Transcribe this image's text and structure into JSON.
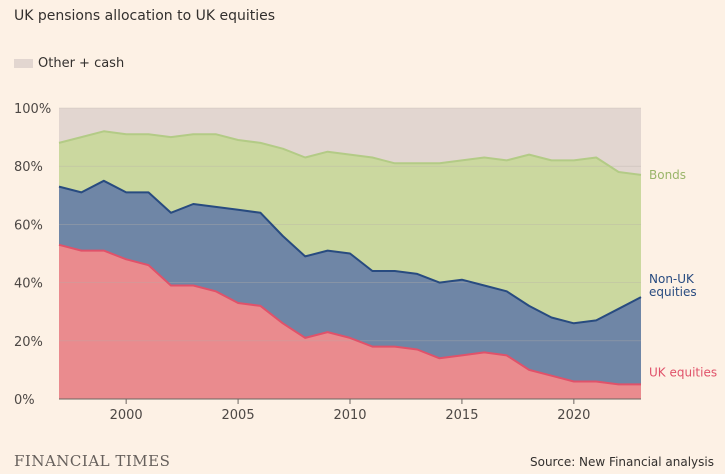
{
  "chart_data": {
    "type": "area",
    "stacked": true,
    "title": "UK pensions allocation to UK equities",
    "source": "Source: New Financial analysis",
    "publisher": "FINANCIAL TIMES",
    "x": [
      1997,
      1998,
      1999,
      2000,
      2001,
      2002,
      2003,
      2004,
      2005,
      2006,
      2007,
      2008,
      2009,
      2010,
      2011,
      2012,
      2013,
      2014,
      2015,
      2016,
      2017,
      2018,
      2019,
      2020,
      2021,
      2022,
      2023
    ],
    "xlim": [
      1997,
      2023
    ],
    "ylim": [
      0,
      100
    ],
    "yticks": [
      0,
      20,
      40,
      60,
      80,
      100
    ],
    "ytick_labels": [
      "0%",
      "20%",
      "40%",
      "60%",
      "80%",
      "100%"
    ],
    "xticks": [
      2000,
      2005,
      2010,
      2015,
      2020
    ],
    "xtick_labels": [
      "2000",
      "2005",
      "2010",
      "2015",
      "2020"
    ],
    "grid": true,
    "legend": {
      "position": "top-left",
      "label": "Other + cash",
      "color": "#e2d6d0"
    },
    "series": [
      {
        "name": "UK equities",
        "label": "UK equities",
        "fill": "#ea8b8e",
        "line": "#e0526a",
        "cumulative": [
          53,
          51,
          51,
          48,
          46,
          39,
          39,
          37,
          33,
          32,
          26,
          21,
          23,
          21,
          18,
          18,
          17,
          14,
          15,
          16,
          15,
          10,
          8,
          6,
          6,
          5,
          5
        ]
      },
      {
        "name": "Non-UK equities",
        "label_lines": [
          "Non-UK",
          "equities"
        ],
        "fill": "#6f86a6",
        "line": "#284b80",
        "cumulative": [
          73,
          71,
          75,
          71,
          71,
          64,
          67,
          66,
          65,
          64,
          56,
          49,
          51,
          50,
          44,
          44,
          43,
          40,
          41,
          39,
          37,
          32,
          28,
          26,
          27,
          31,
          35
        ]
      },
      {
        "name": "Bonds",
        "label": "Bonds",
        "fill": "#cbd89f",
        "line": "#b3cb86",
        "cumulative": [
          88,
          90,
          92,
          91,
          91,
          90,
          91,
          91,
          89,
          88,
          86,
          83,
          85,
          84,
          83,
          81,
          81,
          81,
          82,
          83,
          82,
          84,
          82,
          82,
          83,
          78,
          77
        ]
      },
      {
        "name": "Other + cash",
        "fill": "#e2d6d0",
        "cumulative": [
          100,
          100,
          100,
          100,
          100,
          100,
          100,
          100,
          100,
          100,
          100,
          100,
          100,
          100,
          100,
          100,
          100,
          100,
          100,
          100,
          100,
          100,
          100,
          100,
          100,
          100,
          100
        ]
      }
    ]
  }
}
